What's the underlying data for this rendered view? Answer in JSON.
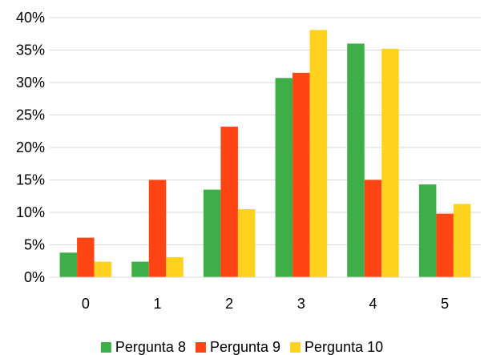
{
  "chart_data": {
    "type": "bar",
    "categories": [
      "0",
      "1",
      "2",
      "3",
      "4",
      "5"
    ],
    "series": [
      {
        "name": "Pergunta 8",
        "color": "#3DAE48",
        "values": [
          3.8,
          2.4,
          13.5,
          30.7,
          36.0,
          14.3
        ]
      },
      {
        "name": "Pergunta 9",
        "color": "#FF4513",
        "values": [
          6.1,
          15.0,
          23.2,
          31.5,
          15.0,
          9.8
        ]
      },
      {
        "name": "Pergunta 10",
        "color": "#FFD21F",
        "values": [
          2.4,
          3.1,
          10.5,
          38.1,
          35.2,
          11.3
        ]
      }
    ],
    "ylim": [
      0,
      40
    ],
    "yticks": [
      "0%",
      "5%",
      "10%",
      "15%",
      "20%",
      "25%",
      "30%",
      "35%",
      "40%"
    ],
    "ytick_values": [
      0,
      5,
      10,
      15,
      20,
      25,
      30,
      35,
      40
    ],
    "grid": true,
    "legend_position": "bottom",
    "title": "",
    "xlabel": "",
    "ylabel": ""
  }
}
